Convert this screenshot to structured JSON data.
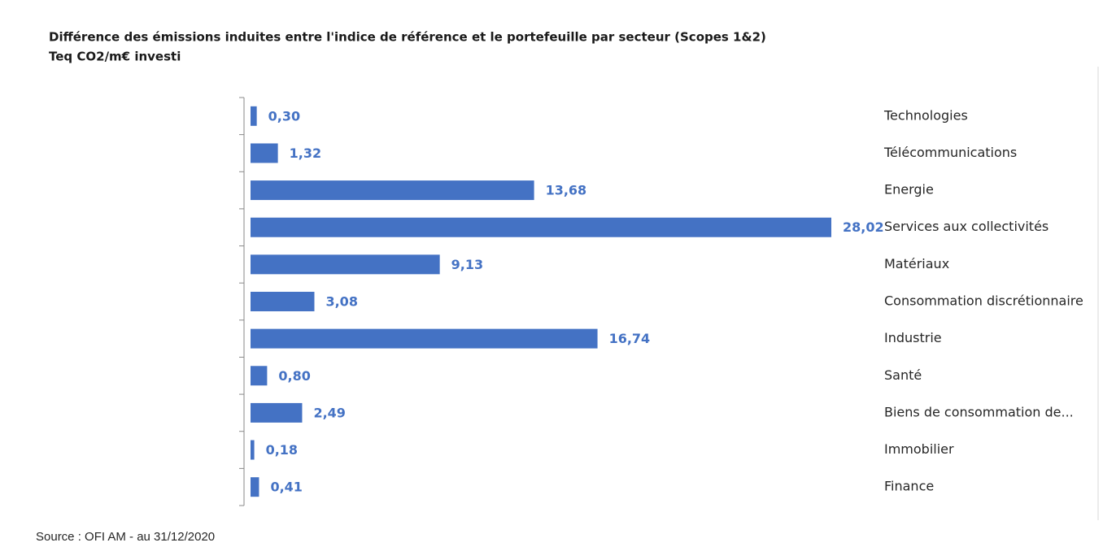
{
  "chart_data": {
    "type": "barh",
    "title": "Différence des émissions induites entre l'indice de référence et le portefeuille par secteur (Scopes 1&2)",
    "subtitle": "Teq CO2/m€ investi",
    "categories": [
      "Technologies",
      "Télécommunications",
      "Energie",
      "Services aux collectivités",
      "Matériaux",
      "Consommation discrétionnaire",
      "Industrie",
      "Santé",
      "Biens de consommation de...",
      "Immobilier",
      "Finance"
    ],
    "values": [
      0.3,
      1.32,
      13.68,
      28.02,
      9.13,
      3.08,
      16.74,
      0.8,
      2.49,
      0.18,
      0.41
    ],
    "value_labels": [
      "0,30",
      "1,32",
      "13,68",
      "28,02",
      "9,13",
      "3,08",
      "16,74",
      "0,80",
      "2,49",
      "0,18",
      "0,41"
    ],
    "color": "#4472c4",
    "source": "Source : OFI AM - au 31/12/2020"
  }
}
